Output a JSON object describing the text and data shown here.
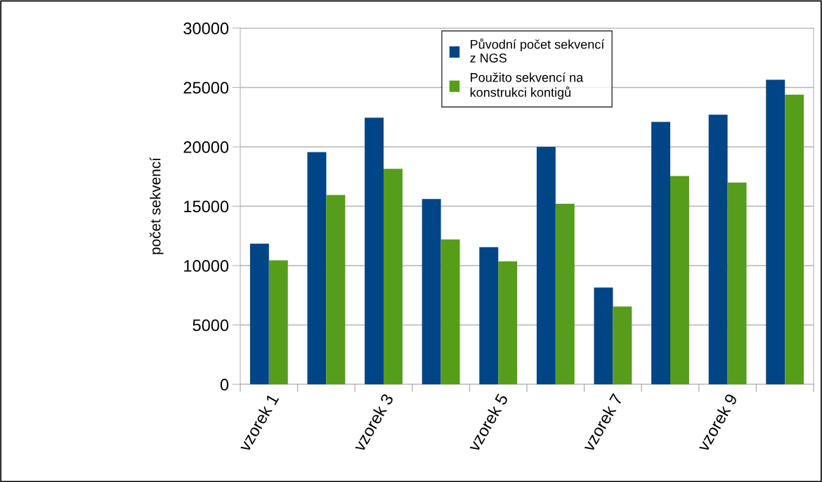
{
  "chart_data": {
    "type": "bar",
    "ylabel": "počet sekvencí",
    "categories": [
      "vzorek 1",
      null,
      "vzorek 3",
      null,
      "vzorek 5",
      null,
      "vzorek 7",
      null,
      "vzorek 9",
      null
    ],
    "series": [
      {
        "name": "Původní počet sekvencí\nz NGS",
        "color": "#004586",
        "values": [
          11850,
          19550,
          22450,
          15600,
          11550,
          20000,
          8150,
          22100,
          22700,
          25650
        ]
      },
      {
        "name": "Použito sekvencí na\nkonstrukci kontigů",
        "color": "#579d1c",
        "values": [
          10450,
          15950,
          18150,
          12200,
          10350,
          15200,
          6550,
          17550,
          17000,
          24400
        ]
      }
    ],
    "ylim": [
      0,
      30000
    ],
    "yticks": [
      0,
      5000,
      10000,
      15000,
      20000,
      25000,
      30000
    ],
    "grid": "y",
    "legend": "top"
  }
}
